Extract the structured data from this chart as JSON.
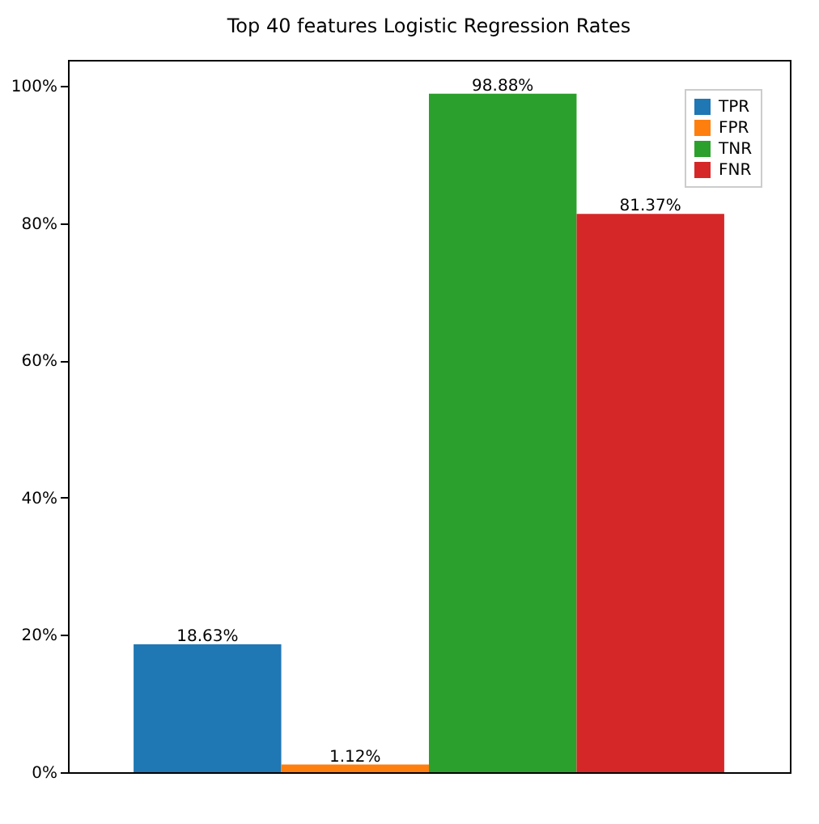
{
  "chart_data": {
    "type": "bar",
    "title": "Top 40 features Logistic Regression Rates",
    "categories": [
      null
    ],
    "series": [
      {
        "name": "TPR",
        "color": "#1f77b4",
        "values": [
          18.63
        ],
        "value_labels": [
          "18.63%"
        ]
      },
      {
        "name": "FPR",
        "color": "#ff7f0e",
        "values": [
          1.12
        ],
        "value_labels": [
          "1.12%"
        ]
      },
      {
        "name": "TNR",
        "color": "#2ca02c",
        "values": [
          98.88
        ],
        "value_labels": [
          "98.88%"
        ]
      },
      {
        "name": "FNR",
        "color": "#d62728",
        "values": [
          81.37
        ],
        "value_labels": [
          "81.37%"
        ]
      }
    ],
    "ylim": [
      0,
      103.8
    ],
    "yticks": [
      {
        "value": 0,
        "label": "0%"
      },
      {
        "value": 20,
        "label": "20%"
      },
      {
        "value": 40,
        "label": "40%"
      },
      {
        "value": 60,
        "label": "60%"
      },
      {
        "value": 80,
        "label": "80%"
      },
      {
        "value": 100,
        "label": "100%"
      }
    ],
    "grid": false,
    "legend": "top right"
  }
}
